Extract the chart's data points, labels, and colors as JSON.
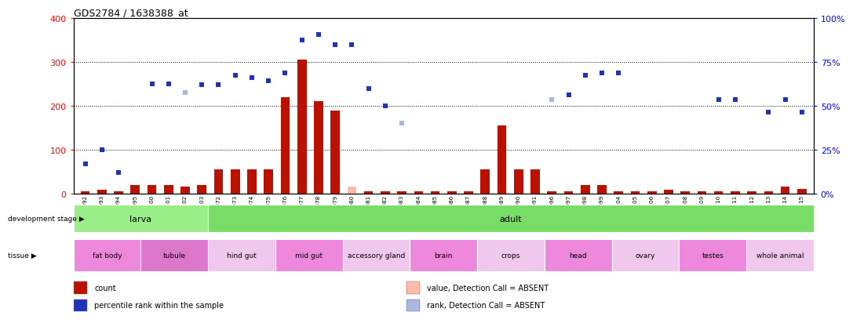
{
  "title": "GDS2784 / 1638388_at",
  "samples": [
    "GSM188092",
    "GSM188093",
    "GSM188094",
    "GSM188095",
    "GSM188100",
    "GSM188101",
    "GSM188102",
    "GSM188103",
    "GSM188072",
    "GSM188073",
    "GSM188074",
    "GSM188075",
    "GSM188076",
    "GSM188077",
    "GSM188078",
    "GSM188079",
    "GSM188080",
    "GSM188081",
    "GSM188082",
    "GSM188083",
    "GSM188084",
    "GSM188085",
    "GSM188086",
    "GSM188087",
    "GSM188088",
    "GSM188089",
    "GSM188090",
    "GSM188091",
    "GSM188096",
    "GSM188097",
    "GSM188098",
    "GSM188099",
    "GSM188104",
    "GSM188105",
    "GSM188106",
    "GSM188107",
    "GSM188108",
    "GSM188109",
    "GSM188110",
    "GSM188111",
    "GSM188112",
    "GSM188113",
    "GSM188114",
    "GSM188115"
  ],
  "counts": [
    5,
    8,
    5,
    20,
    20,
    20,
    15,
    20,
    55,
    55,
    55,
    55,
    220,
    305,
    210,
    190,
    15,
    5,
    5,
    5,
    5,
    5,
    5,
    5,
    55,
    155,
    55,
    55,
    5,
    5,
    20,
    20,
    5,
    5,
    5,
    8,
    5,
    5,
    5,
    5,
    5,
    5,
    15,
    10
  ],
  "count_absent": [
    false,
    false,
    false,
    false,
    false,
    false,
    false,
    false,
    false,
    false,
    false,
    false,
    false,
    false,
    false,
    false,
    true,
    false,
    false,
    false,
    false,
    false,
    false,
    false,
    false,
    false,
    false,
    false,
    false,
    false,
    false,
    false,
    false,
    false,
    false,
    false,
    false,
    false,
    false,
    false,
    false,
    false,
    false,
    false
  ],
  "ranks": [
    68,
    100,
    48,
    null,
    250,
    250,
    230,
    248,
    248,
    270,
    265,
    258,
    275,
    350,
    362,
    340,
    340,
    240,
    200,
    160,
    null,
    null,
    null,
    null,
    null,
    null,
    null,
    null,
    215,
    225,
    270,
    275,
    275,
    null,
    null,
    null,
    null,
    null,
    215,
    215,
    null,
    185,
    215,
    185
  ],
  "rank_absent": [
    false,
    false,
    false,
    false,
    false,
    false,
    true,
    false,
    false,
    false,
    false,
    false,
    false,
    false,
    false,
    false,
    false,
    false,
    false,
    true,
    false,
    false,
    false,
    false,
    false,
    false,
    false,
    false,
    true,
    false,
    false,
    false,
    false,
    true,
    true,
    false,
    false,
    false,
    false,
    false,
    false,
    false,
    false,
    false
  ],
  "bar_color": "#bb1100",
  "bar_absent_color": "#ffbbaa",
  "rank_color": "#2233bb",
  "rank_absent_color": "#aab8dd",
  "dev_stage_groups": [
    {
      "label": "larva",
      "start": 0,
      "end": 8,
      "color": "#99ee88"
    },
    {
      "label": "adult",
      "start": 8,
      "end": 44,
      "color": "#77dd66"
    }
  ],
  "tissue_groups": [
    {
      "label": "fat body",
      "start": 0,
      "end": 4,
      "color": "#ee88dd"
    },
    {
      "label": "tubule",
      "start": 4,
      "end": 8,
      "color": "#dd77cc"
    },
    {
      "label": "hind gut",
      "start": 8,
      "end": 12,
      "color": "#f5c8f0"
    },
    {
      "label": "mid gut",
      "start": 12,
      "end": 16,
      "color": "#ee88dd"
    },
    {
      "label": "accessory gland",
      "start": 16,
      "end": 20,
      "color": "#f5c8f0"
    },
    {
      "label": "brain",
      "start": 20,
      "end": 24,
      "color": "#ee88dd"
    },
    {
      "label": "crops",
      "start": 24,
      "end": 28,
      "color": "#f5c8f0"
    },
    {
      "label": "head",
      "start": 28,
      "end": 32,
      "color": "#ee88dd"
    },
    {
      "label": "ovary",
      "start": 32,
      "end": 36,
      "color": "#f5c8f0"
    },
    {
      "label": "testes",
      "start": 36,
      "end": 40,
      "color": "#ee88dd"
    },
    {
      "label": "whole animal",
      "start": 40,
      "end": 44,
      "color": "#f5c8f0"
    }
  ],
  "legend_items": [
    {
      "color": "#bb1100",
      "label": "count"
    },
    {
      "color": "#2233bb",
      "label": "percentile rank within the sample"
    },
    {
      "color": "#ffbbaa",
      "label": "value, Detection Call = ABSENT"
    },
    {
      "color": "#aab8dd",
      "label": "rank, Detection Call = ABSENT"
    }
  ]
}
